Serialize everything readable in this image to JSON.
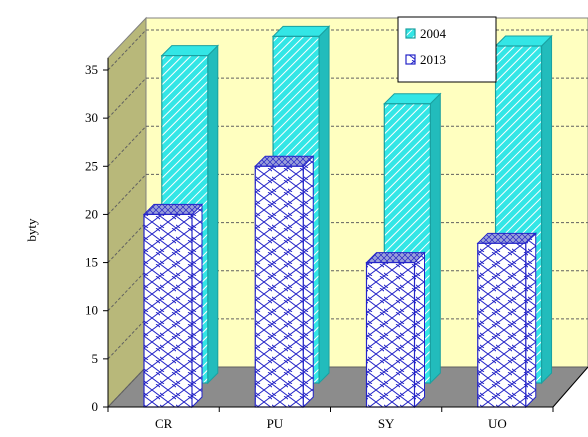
{
  "chart_data": {
    "type": "bar",
    "style": "3d-clustered-depth",
    "categories": [
      "CR",
      "PU",
      "SY",
      "UO"
    ],
    "series": [
      {
        "name": "2004",
        "values": [
          34,
          36,
          29,
          35
        ],
        "color": "#33e6e6",
        "pattern": "diagonal-stripes"
      },
      {
        "name": "2013",
        "values": [
          20,
          25,
          15,
          17
        ],
        "color": "#2424c8",
        "pattern": "diagonal-crosshatch"
      }
    ],
    "ylabel": "byty",
    "xlabel": "",
    "ylim": [
      0,
      35
    ],
    "yticks": [
      0,
      5,
      10,
      15,
      20,
      25,
      30,
      35
    ],
    "grid": true,
    "legend_position": "top-right",
    "colors": {
      "back_wall": "#ffffc0",
      "side_wall": "#b8b87a",
      "floor": "#8c8c8c",
      "gridline": "#606060"
    }
  }
}
